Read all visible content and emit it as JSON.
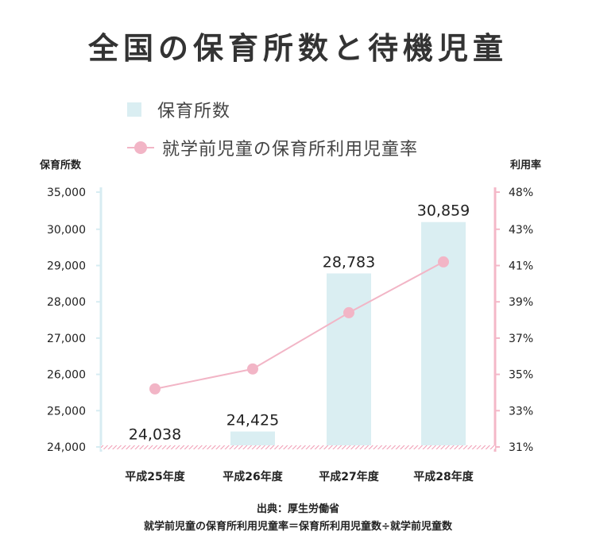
{
  "title": "全国の保育所数と待機児童",
  "legend": {
    "bar_label": "保育所数",
    "line_label": "就学前児童の保育所利用児童率"
  },
  "axes": {
    "left_title": "保育所数",
    "right_title": "利用率"
  },
  "source": "出典：厚生労働省",
  "formula": "就学前児童の保育所利用児童率＝保育所利用児童数÷就学前児童数",
  "colors": {
    "bar": "#daeef2",
    "line": "#f2b5c6",
    "left_axis": "#d7ecf2",
    "right_axis": "#f4b8c8",
    "baseline": "#f09ab2"
  },
  "chart_data": {
    "type": "bar",
    "categories": [
      "平成25年度",
      "平成26年度",
      "平成27年度",
      "平成28年度"
    ],
    "series": [
      {
        "name": "保育所数",
        "type": "bar",
        "axis": "left",
        "values": [
          24038,
          24425,
          28783,
          30859
        ],
        "value_labels": [
          "24,038",
          "24,425",
          "28,783",
          "30,859"
        ]
      },
      {
        "name": "就学前児童の保育所利用児童率",
        "type": "line",
        "axis": "right",
        "values": [
          34.2,
          35.3,
          38.4,
          41.2
        ]
      }
    ],
    "left_axis": {
      "title": "保育所数",
      "ylim": [
        24000,
        35000
      ],
      "ticks": [
        24000,
        25000,
        26000,
        27000,
        28000,
        29000,
        30000,
        35000
      ],
      "tick_labels": [
        "24,000",
        "25,000",
        "26,000",
        "27,000",
        "28,000",
        "29,000",
        "30,000",
        "35,000"
      ]
    },
    "right_axis": {
      "title": "利用率",
      "ylim": [
        31,
        48
      ],
      "ticks": [
        31,
        33,
        35,
        37,
        39,
        41,
        43,
        48
      ],
      "tick_labels": [
        "31%",
        "33%",
        "35%",
        "37%",
        "39%",
        "41%",
        "43%",
        "48%"
      ]
    },
    "axis_break": "between 30,000/43% and 35,000/48%",
    "grid": false,
    "legend_position": "top"
  }
}
